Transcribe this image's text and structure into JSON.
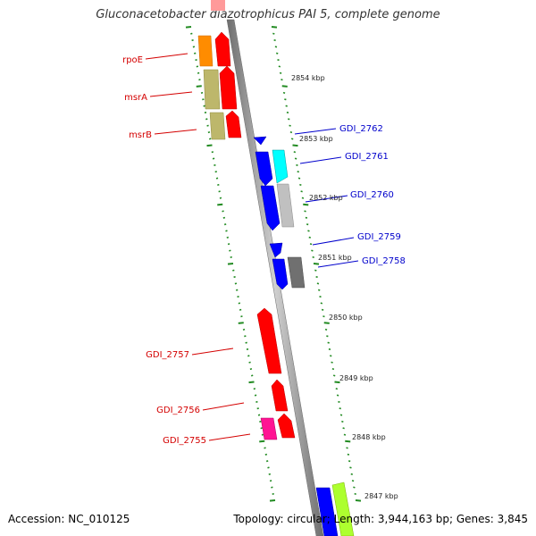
{
  "title": "Gluconacetobacter diazotrophicus PAI 5, complete genome",
  "accession_line": "Accession: NC_010125",
  "summary_line": "Topology: circular; Length: 3,944,163 bp; Genes: 3,845",
  "colors": {
    "backbone": "#8c8c8c",
    "tick": "#228b22",
    "left_label": "#d40000",
    "right_label": "#0000cc",
    "ruler_text": "#222222"
  },
  "ruler_labels": [
    "2854 kbp",
    "2853 kbp",
    "2852 kbp",
    "2851 kbp",
    "2850 kbp",
    "2849 kbp",
    "2848 kbp",
    "2847 kbp"
  ],
  "gene_labels_left": [
    "rpoE",
    "msrA",
    "msrB",
    "GDI_2757",
    "GDI_2756",
    "GDI_2755"
  ],
  "gene_labels_right": [
    "GDI_2762",
    "GDI_2761",
    "GDI_2760",
    "GDI_2759",
    "GDI_2758"
  ],
  "feature_colors": {
    "red": "#ff0000",
    "orange": "#ff8c00",
    "khaki": "#bdb76b",
    "blue": "#0000ff",
    "cyan": "#00ffff",
    "gray": "#c0c0c0",
    "darkgray": "#707070",
    "magenta": "#ff1493",
    "lime": "#adff2f"
  }
}
